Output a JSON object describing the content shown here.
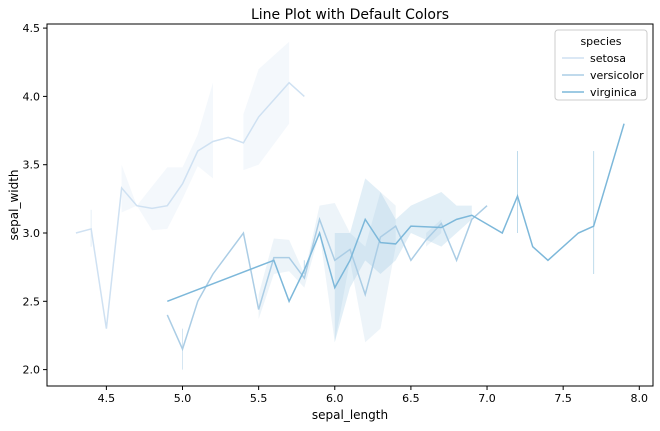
{
  "chart_data": {
    "type": "line",
    "title": "Line Plot with Default Colors",
    "xlabel": "sepal_length",
    "ylabel": "sepal_width",
    "xlim": [
      4.11,
      8.09
    ],
    "ylim": [
      1.88,
      4.53
    ],
    "xticks": [
      4.5,
      5.0,
      5.5,
      6.0,
      6.5,
      7.0,
      7.5,
      8.0
    ],
    "xtick_labels": [
      "4.5",
      "5.0",
      "5.5",
      "6.0",
      "6.5",
      "7.0",
      "7.5",
      "8.0"
    ],
    "yticks": [
      2.0,
      2.5,
      3.0,
      3.5,
      4.0,
      4.5
    ],
    "ytick_labels": [
      "2.0",
      "2.5",
      "3.0",
      "3.5",
      "4.0",
      "4.5"
    ],
    "grid": false,
    "legend": {
      "title": "species",
      "placement": "top-right"
    },
    "series": [
      {
        "name": "setosa",
        "color": "#cfe1f2",
        "x": [
          4.3,
          4.4,
          4.5,
          4.6,
          4.7,
          4.8,
          4.9,
          5.0,
          5.1,
          5.2,
          5.3,
          5.4,
          5.5,
          5.7,
          5.8
        ],
        "y": [
          3.0,
          3.03,
          2.3,
          3.33,
          3.2,
          3.18,
          3.2,
          3.36,
          3.6,
          3.67,
          3.7,
          3.66,
          3.85,
          4.1,
          4.0
        ],
        "ci_low": [
          null,
          2.9,
          null,
          3.15,
          3.2,
          3.02,
          3.03,
          3.25,
          3.49,
          3.4,
          null,
          3.46,
          3.5,
          3.8,
          null
        ],
        "ci_high": [
          null,
          3.17,
          null,
          3.5,
          3.2,
          3.34,
          3.48,
          3.48,
          3.72,
          4.1,
          null,
          3.87,
          4.2,
          4.4,
          null
        ]
      },
      {
        "name": "versicolor",
        "color": "#abcde5",
        "x": [
          4.9,
          5.0,
          5.1,
          5.2,
          5.4,
          5.5,
          5.6,
          5.7,
          5.8,
          5.9,
          6.0,
          6.1,
          6.2,
          6.3,
          6.4,
          6.5,
          6.6,
          6.7,
          6.8,
          6.9,
          7.0
        ],
        "y": [
          2.4,
          2.15,
          2.5,
          2.7,
          3.0,
          2.44,
          2.82,
          2.82,
          2.67,
          3.1,
          2.8,
          2.88,
          2.55,
          2.97,
          3.05,
          2.8,
          2.95,
          3.07,
          2.8,
          3.1,
          3.2
        ],
        "ci_low": [
          null,
          2.0,
          null,
          null,
          null,
          2.37,
          2.7,
          2.72,
          2.6,
          3.0,
          2.2,
          2.8,
          2.2,
          2.3,
          2.9,
          null,
          2.9,
          3.0,
          null,
          null,
          null
        ],
        "ci_high": [
          null,
          2.3,
          null,
          null,
          null,
          2.55,
          2.96,
          2.95,
          2.7,
          3.2,
          3.22,
          3.0,
          2.9,
          3.3,
          3.2,
          null,
          3.0,
          3.1,
          null,
          null,
          null
        ]
      },
      {
        "name": "virginica",
        "color": "#7db8da",
        "x": [
          4.9,
          5.6,
          5.7,
          5.8,
          5.9,
          6.0,
          6.1,
          6.2,
          6.3,
          6.4,
          6.5,
          6.7,
          6.8,
          6.9,
          7.1,
          7.2,
          7.3,
          7.4,
          7.6,
          7.7,
          7.9
        ],
        "y": [
          2.5,
          2.8,
          2.5,
          2.73,
          3.0,
          2.6,
          2.8,
          3.1,
          2.93,
          2.92,
          3.05,
          3.04,
          3.1,
          3.13,
          3.0,
          3.27,
          2.9,
          2.8,
          3.0,
          3.05,
          3.8
        ],
        "ci_low": [
          null,
          null,
          null,
          2.7,
          null,
          2.2,
          2.6,
          2.8,
          2.7,
          2.8,
          3.0,
          2.9,
          3.0,
          3.1,
          null,
          3.0,
          null,
          null,
          null,
          2.7,
          null
        ],
        "ci_high": [
          null,
          null,
          null,
          2.8,
          null,
          3.0,
          3.0,
          3.4,
          3.3,
          3.1,
          3.2,
          3.3,
          3.2,
          3.2,
          null,
          3.6,
          null,
          null,
          null,
          3.6,
          null
        ]
      }
    ]
  }
}
